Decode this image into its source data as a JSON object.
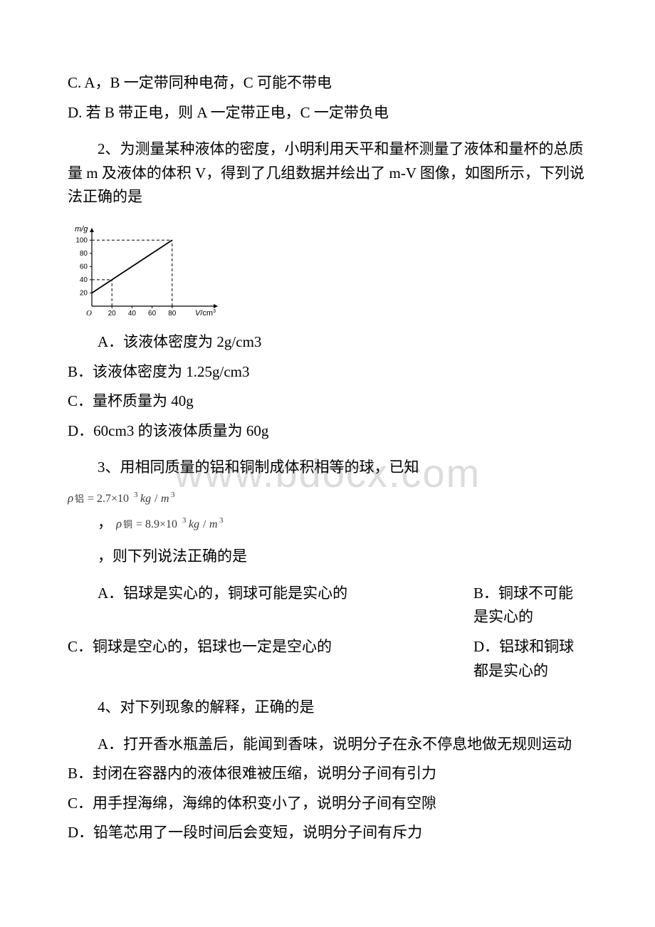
{
  "watermark": "www.bdocx.com",
  "q1": {
    "optC": "C. A，B 一定带同种电荷，C 可能不带电",
    "optD": "D. 若 B 带正电，则 A 一定带正电，C 一定带负电"
  },
  "q2": {
    "stem": "2、为测量某种液体的密度，小明利用天平和量杯测量了液体和量杯的总质量 m 及液体的体积 V，得到了几组数据并绘出了 m-V 图像，如图所示，下列说法正确的是",
    "optA": "A．该液体密度为 2g/cm3",
    "optB": "B．该液体密度为 1.25g/cm3",
    "optC": "C．量杯质量为 40g",
    "optD": "D．60cm3 的该液体质量为 60g",
    "chart": {
      "type": "line",
      "y_label": "m/g",
      "x_label": "V/cm",
      "x_ticks": [
        20,
        40,
        60,
        80
      ],
      "y_ticks": [
        20,
        40,
        60,
        80,
        100
      ],
      "points": [
        [
          0,
          20
        ],
        [
          80,
          100
        ]
      ],
      "dash_points": [
        [
          20,
          40
        ],
        [
          80,
          100
        ]
      ],
      "axis_color": "#000000",
      "line_color": "#000000",
      "dash_color": "#000000",
      "background": "#ffffff",
      "tick_fontsize": 10,
      "label_fontsize": 11,
      "xlim": [
        0,
        100
      ],
      "ylim": [
        0,
        110
      ]
    }
  },
  "q3": {
    "stem": "3、用相同质量的铝和铜制成体积相等的球，已知",
    "formula1_text": "ρ铝 = 2.7×10³ kg / m³",
    "comma": "，",
    "formula2_text": "ρ铜 = 8.9×10³ kg / m³",
    "tail": "，则下列说法正确的是",
    "optA": "A．铝球是实心的，铜球可能是实心的",
    "optB": "B．铜球不可能是实心的",
    "optC": "C．铜球是空心的，铝球也一定是空心的",
    "optD": "D．铝球和铜球都是实心的"
  },
  "q4": {
    "stem": "4、对下列现象的解释，正确的是",
    "optA": "A．打开香水瓶盖后，能闻到香味，说明分子在永不停息地做无规则运动",
    "optB": "B．封闭在容器内的液体很难被压缩，说明分子间有引力",
    "optC": "C．用手捏海绵，海绵的体积变小了，说明分子间有空隙",
    "optD": "D．铅笔芯用了一段时间后会变短，说明分子间有斥力"
  }
}
